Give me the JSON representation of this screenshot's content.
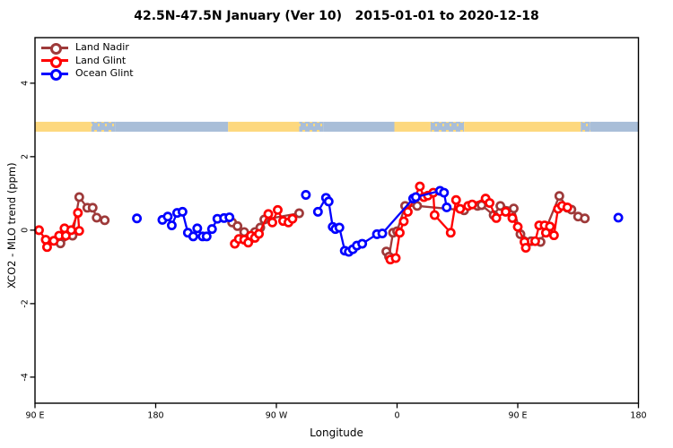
{
  "title": "42.5N-47.5N January (Ver 10)   2015-01-01 to 2020-12-18",
  "axes": {
    "x": {
      "label": "Longitude",
      "ticks": [
        {
          "deg": 0,
          "label": "90 E"
        },
        {
          "deg": 90,
          "label": "180"
        },
        {
          "deg": 180,
          "label": "90 W"
        },
        {
          "deg": 270,
          "label": "0"
        },
        {
          "deg": 360,
          "label": "90 E"
        },
        {
          "deg": 450,
          "label": "180"
        }
      ]
    },
    "y": {
      "label": "XCO2 - MLO trend (ppm)",
      "ticks": [
        -4,
        -2,
        0,
        2,
        4
      ]
    }
  },
  "legend": {
    "items": [
      {
        "label": "Land Nadir",
        "color": "#9E3A3A"
      },
      {
        "label": "Land Glint",
        "color": "#FF0000"
      },
      {
        "label": "Ocean Glint",
        "color": "#0000FF"
      }
    ]
  },
  "map_strip": {
    "band_y": [
      2.68,
      2.95
    ],
    "land_color": "#FDD87E",
    "ocean_color": "#A9BED8",
    "segments": [
      {
        "from": 0,
        "to": 42,
        "type": "land"
      },
      {
        "from": 42,
        "to": 60,
        "type": "mixed"
      },
      {
        "from": 60,
        "to": 144,
        "type": "ocean"
      },
      {
        "from": 144,
        "to": 197,
        "type": "land"
      },
      {
        "from": 197,
        "to": 215,
        "type": "mixed"
      },
      {
        "from": 215,
        "to": 268,
        "type": "ocean"
      },
      {
        "from": 268,
        "to": 295,
        "type": "land"
      },
      {
        "from": 295,
        "to": 320,
        "type": "mixed"
      },
      {
        "from": 320,
        "to": 407,
        "type": "land"
      },
      {
        "from": 407,
        "to": 414,
        "type": "mixed"
      },
      {
        "from": 414,
        "to": 450,
        "type": "ocean"
      }
    ]
  },
  "chart_data": {
    "type": "line",
    "x_deg_range": [
      0,
      450
    ],
    "ylim": [
      -4.71,
      5.24
    ],
    "title": "42.5N-47.5N January (Ver 10)   2015-01-01 to 2020-12-18",
    "xlabel": "Longitude",
    "ylabel": "XCO2 - MLO trend (ppm)",
    "series": [
      {
        "name": "Land Nadir",
        "color": "#9E3A3A",
        "segments": [
          [
            [
              19,
              -0.36
            ],
            [
              28,
              -0.15
            ],
            [
              33,
              0.9
            ],
            [
              39,
              0.61
            ],
            [
              43,
              0.61
            ],
            [
              46,
              0.34
            ],
            [
              52,
              0.27
            ]
          ],
          [
            [
              147,
              0.21
            ],
            [
              151,
              0.11
            ],
            [
              156,
              -0.05
            ],
            [
              160,
              -0.26
            ],
            [
              164,
              -0.05
            ],
            [
              168,
              0.07
            ],
            [
              171,
              0.29
            ],
            [
              197,
              0.46
            ]
          ],
          [
            [
              262,
              -0.58
            ],
            [
              264,
              -0.72
            ],
            [
              267,
              -0.07
            ],
            [
              270,
              -0.03
            ],
            [
              276,
              0.66
            ],
            [
              285,
              0.66
            ],
            [
              320,
              0.54
            ],
            [
              330,
              0.66
            ],
            [
              333,
              0.68
            ],
            [
              342,
              0.41
            ],
            [
              347,
              0.66
            ],
            [
              357,
              0.59
            ],
            [
              362,
              -0.11
            ],
            [
              370,
              -0.3
            ],
            [
              377,
              -0.32
            ],
            [
              391,
              0.93
            ],
            [
              397,
              0.61
            ],
            [
              400,
              0.56
            ],
            [
              405,
              0.37
            ],
            [
              410,
              0.32
            ]
          ]
        ]
      },
      {
        "name": "Land Glint",
        "color": "#FF0000",
        "segments": [
          [
            [
              3,
              0
            ],
            [
              8,
              -0.26
            ],
            [
              9,
              -0.46
            ],
            [
              14,
              -0.29
            ],
            [
              18,
              -0.15
            ],
            [
              22,
              0.05
            ],
            [
              23,
              -0.15
            ],
            [
              27,
              0
            ],
            [
              32,
              0.47
            ],
            [
              33,
              -0.02
            ]
          ],
          [
            [
              149,
              -0.37
            ],
            [
              152,
              -0.24
            ],
            [
              156,
              -0.26
            ],
            [
              159,
              -0.34
            ],
            [
              161,
              -0.15
            ],
            [
              164,
              -0.21
            ],
            [
              167,
              -0.1
            ],
            [
              174,
              0.44
            ],
            [
              177,
              0.21
            ],
            [
              181,
              0.55
            ],
            [
              185,
              0.25
            ],
            [
              189,
              0.21
            ],
            [
              192,
              0.31
            ]
          ],
          [
            [
              265,
              -0.8
            ],
            [
              269,
              -0.76
            ],
            [
              272,
              -0.07
            ],
            [
              275,
              0.24
            ],
            [
              278,
              0.5
            ],
            [
              287,
              1.19
            ],
            [
              290,
              0.9
            ],
            [
              293,
              0.94
            ],
            [
              297,
              1.02
            ],
            [
              298,
              0.41
            ],
            [
              310,
              -0.07
            ],
            [
              314,
              0.82
            ],
            [
              317,
              0.58
            ],
            [
              323,
              0.66
            ],
            [
              326,
              0.7
            ],
            [
              336,
              0.86
            ],
            [
              339,
              0.74
            ],
            [
              344,
              0.33
            ],
            [
              351,
              0.5
            ],
            [
              356,
              0.33
            ],
            [
              360,
              0.09
            ],
            [
              365,
              -0.32
            ],
            [
              366,
              -0.48
            ],
            [
              373,
              -0.3
            ],
            [
              376,
              0.13
            ],
            [
              380,
              0.13
            ],
            [
              381,
              -0.07
            ],
            [
              384,
              0.1
            ],
            [
              387,
              -0.14
            ],
            [
              390,
              0.58
            ],
            [
              393,
              0.66
            ],
            [
              397,
              0.62
            ]
          ]
        ]
      },
      {
        "name": "Ocean Glint",
        "color": "#0000FF",
        "segments": [
          [
            [
              76,
              0.32
            ]
          ],
          [
            [
              95,
              0.28
            ],
            [
              99,
              0.37
            ],
            [
              102,
              0.13
            ],
            [
              106,
              0.47
            ],
            [
              110,
              0.5
            ],
            [
              114,
              -0.07
            ],
            [
              118,
              -0.17
            ],
            [
              121,
              0.05
            ],
            [
              125,
              -0.17
            ],
            [
              128,
              -0.17
            ],
            [
              132,
              0.03
            ],
            [
              136,
              0.31
            ],
            [
              141,
              0.33
            ],
            [
              145,
              0.35
            ]
          ],
          [
            [
              202,
              0.96
            ]
          ],
          [
            [
              211,
              0.5
            ],
            [
              217,
              0.88
            ],
            [
              219,
              0.78
            ],
            [
              222,
              0.09
            ],
            [
              224,
              0.03
            ],
            [
              227,
              0.07
            ],
            [
              231,
              -0.56
            ],
            [
              234,
              -0.59
            ],
            [
              237,
              -0.52
            ],
            [
              240,
              -0.42
            ],
            [
              244,
              -0.37
            ],
            [
              255,
              -0.11
            ],
            [
              259,
              -0.09
            ],
            [
              282,
              0.86
            ],
            [
              284,
              0.9
            ],
            [
              302,
              1.07
            ],
            [
              305,
              1.02
            ],
            [
              307,
              0.62
            ]
          ],
          [
            [
              435,
              0.34
            ]
          ]
        ]
      }
    ]
  }
}
